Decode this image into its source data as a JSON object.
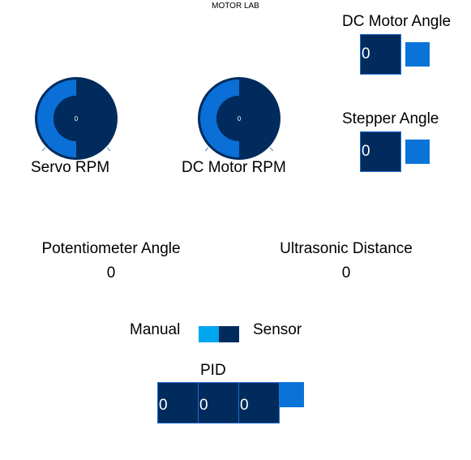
{
  "app": {
    "title": "MOTOR LAB"
  },
  "colors": {
    "panel_navy": "#002b5c",
    "accent_blue": "#0a73d8",
    "toggle_light": "#00a5f0",
    "knob_arc": "#0a6fd6"
  },
  "dials": [
    {
      "label": "Servo RPM",
      "value": "0",
      "fill_fraction": 0.35
    },
    {
      "label": "DC Motor RPM",
      "value": "0",
      "fill_fraction": 0.35
    }
  ],
  "dc_motor_angle": {
    "label": "DC Motor Angle",
    "value": "0"
  },
  "stepper_angle": {
    "label": "Stepper Angle",
    "value": "0"
  },
  "potentiometer": {
    "label": "Potentiometer Angle",
    "value": "0"
  },
  "ultrasonic": {
    "label": "Ultrasonic Distance",
    "value": "0"
  },
  "mode": {
    "left_label": "Manual",
    "right_label": "Sensor",
    "selected": "Sensor"
  },
  "pid": {
    "label": "PID",
    "values": [
      "0",
      "0",
      "0"
    ]
  }
}
